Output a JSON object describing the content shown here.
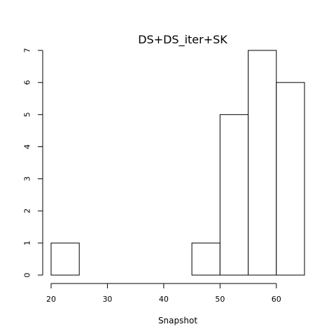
{
  "chart_data": {
    "type": "bar",
    "title": "DS+DS_iter+SK",
    "xlabel": "Snapshot",
    "ylabel": "",
    "bins": [
      {
        "x0": 20,
        "x1": 25,
        "value": 1
      },
      {
        "x0": 25,
        "x1": 30,
        "value": 0
      },
      {
        "x0": 30,
        "x1": 35,
        "value": 0
      },
      {
        "x0": 35,
        "x1": 40,
        "value": 0
      },
      {
        "x0": 40,
        "x1": 45,
        "value": 0
      },
      {
        "x0": 45,
        "x1": 50,
        "value": 1
      },
      {
        "x0": 50,
        "x1": 55,
        "value": 5
      },
      {
        "x0": 55,
        "x1": 60,
        "value": 7
      },
      {
        "x0": 60,
        "x1": 65,
        "value": 6
      }
    ],
    "xlim": [
      20,
      65
    ],
    "ylim": [
      0,
      7
    ],
    "x_ticks": [
      20,
      30,
      40,
      50,
      60
    ],
    "y_ticks": [
      0,
      1,
      2,
      3,
      4,
      5,
      6,
      7
    ],
    "grid": false,
    "bar_fill": "#ffffff",
    "bar_stroke": "#000000"
  }
}
